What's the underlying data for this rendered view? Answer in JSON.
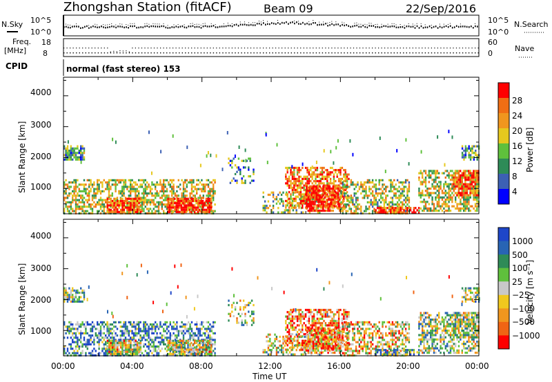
{
  "header": {
    "station": "Zhongshan Station (fitACF)",
    "beam": "Beam 09",
    "date": "22/Sep/2016"
  },
  "top_panels": {
    "nsky_label": "N.Sky",
    "nsky_ticks": [
      "10^5",
      "10^0"
    ],
    "nsearch_label": "N.Search",
    "nsearch_ticks": [
      "10^5",
      "10^0"
    ],
    "freq_label_1": "Freq.",
    "freq_label_2": "[MHz]",
    "freq_ticks": [
      "18",
      "8"
    ],
    "nave_label": "Nave",
    "nave_ticks": [
      "60",
      "0"
    ],
    "cpid_label": "CPID",
    "cpid_text": "normal (fast stereo) 153"
  },
  "chart_data": [
    {
      "type": "heatmap",
      "panel": "power",
      "ylabel": "Slant Range [km]",
      "xlabel": "Time UT",
      "xlim": [
        0,
        24
      ],
      "ylim": [
        180,
        4600
      ],
      "y_ticks": [
        "1000",
        "2000",
        "3000",
        "4000"
      ],
      "colorbar_label": "Power [dB]",
      "colorbar_ticks": [
        "4",
        "8",
        "12",
        "16",
        "20",
        "24",
        "28"
      ],
      "colorbar_colors": [
        "#0000ff",
        "#3c60b4",
        "#2e8b57",
        "#5fc03c",
        "#e6c81e",
        "#f0961e",
        "#f06e14",
        "#ff0000"
      ]
    },
    {
      "type": "heatmap",
      "panel": "velocity",
      "ylabel": "Slant Range [km]",
      "xlabel": "Time UT",
      "xlim": [
        0,
        24
      ],
      "ylim": [
        180,
        4600
      ],
      "y_ticks": [
        "1000",
        "2000",
        "3000",
        "4000"
      ],
      "x_ticks": [
        "00:00",
        "04:00",
        "08:00",
        "12:00",
        "16:00",
        "20:00",
        "00:00"
      ],
      "colorbar_label": "Velocity [m s⁻¹]",
      "colorbar_ticks": [
        "1000",
        "500",
        "100",
        "25",
        "−25",
        "−100",
        "−500",
        "−1000"
      ],
      "colorbar_colors": [
        "#1e46c8",
        "#2864b4",
        "#2e8b57",
        "#5fc03c",
        "#c8c8c8",
        "#f0c81e",
        "#f0961e",
        "#f06414",
        "#ff0000"
      ]
    }
  ]
}
